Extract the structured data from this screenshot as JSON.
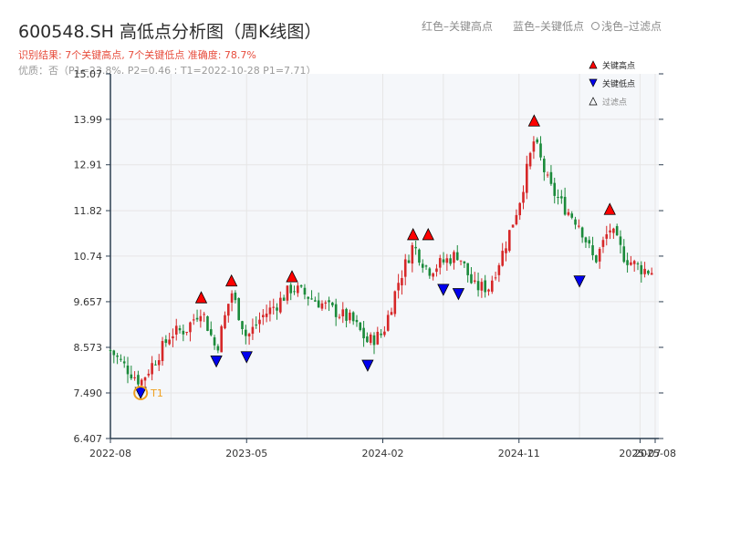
{
  "header": {
    "title": "600548.SH 高低点分析图（周K线图）",
    "hint_red": "红色–关键高点",
    "hint_blue": "蓝色–关键低点",
    "hint_light": "浅色–过滤点",
    "result_text": "识别结果: 7个关键高点, 7个关键低点   准确度: 78.7%",
    "quality_text": "优质：否（P1=23.8%, P2=0.46 ; T1=2022-10-28 P1=7.71）"
  },
  "colors": {
    "up": "#d62728",
    "down": "#1a8a3a",
    "high_marker": "#ff0000",
    "low_marker": "#0000ee",
    "t1_ring": "#f0a020",
    "axis": "#2c3e50",
    "grid": "#e6e6e6",
    "plot_bg": "#f5f7fa"
  },
  "chart_data": {
    "type": "candlestick",
    "title": "600548.SH 高低点分析图（周K线图）",
    "ylim": [
      6.407,
      15.07
    ],
    "y_ticks": [
      "6.407",
      "7.490",
      "8.573",
      "9.657",
      "10.74",
      "11.82",
      "12.91",
      "13.99",
      "15.07"
    ],
    "x_ticks": [
      "2022-08",
      "2023-05",
      "2024-02",
      "2024-11",
      "2025-07",
      "2025-08"
    ],
    "legend": {
      "placement": "top-right",
      "items": [
        {
          "label": "关键高点",
          "marker": "triangle-up",
          "color": "#ff0000"
        },
        {
          "label": "关键低点",
          "marker": "triangle-down",
          "color": "#0000ee"
        },
        {
          "label": "过滤点",
          "marker": "triangle-up-outline",
          "color": "#888888"
        }
      ]
    },
    "price_path": [
      {
        "t": "2022-08",
        "price": 8.5
      },
      {
        "t": "2022-09",
        "price": 8.1
      },
      {
        "t": "2022-10",
        "price": 7.75
      },
      {
        "t": "2022-11",
        "price": 8.3
      },
      {
        "t": "2022-12",
        "price": 8.9
      },
      {
        "t": "2023-01",
        "price": 9.0
      },
      {
        "t": "2023-02",
        "price": 9.5
      },
      {
        "t": "2023-03",
        "price": 8.5
      },
      {
        "t": "2023-04",
        "price": 9.9
      },
      {
        "t": "2023-05",
        "price": 8.8
      },
      {
        "t": "2023-06",
        "price": 9.3
      },
      {
        "t": "2023-07",
        "price": 9.6
      },
      {
        "t": "2023-08",
        "price": 10.0
      },
      {
        "t": "2023-09",
        "price": 9.8
      },
      {
        "t": "2023-10",
        "price": 9.6
      },
      {
        "t": "2023-11",
        "price": 9.4
      },
      {
        "t": "2023-12",
        "price": 9.2
      },
      {
        "t": "2024-01",
        "price": 8.7
      },
      {
        "t": "2024-02",
        "price": 8.9
      },
      {
        "t": "2024-03",
        "price": 10.1
      },
      {
        "t": "2024-04",
        "price": 11.0
      },
      {
        "t": "2024-05",
        "price": 10.4
      },
      {
        "t": "2024-06",
        "price": 10.6
      },
      {
        "t": "2024-07",
        "price": 10.8
      },
      {
        "t": "2024-08",
        "price": 10.0
      },
      {
        "t": "2024-09",
        "price": 10.0
      },
      {
        "t": "2024-10",
        "price": 10.9
      },
      {
        "t": "2024-11",
        "price": 12.0
      },
      {
        "t": "2024-12",
        "price": 13.5
      },
      {
        "t": "2025-01",
        "price": 12.4
      },
      {
        "t": "2025-02",
        "price": 11.9
      },
      {
        "t": "2025-03",
        "price": 11.5
      },
      {
        "t": "2025-04",
        "price": 10.6
      },
      {
        "t": "2025-05",
        "price": 11.4
      },
      {
        "t": "2025-06",
        "price": 10.7
      },
      {
        "t": "2025-07",
        "price": 10.45
      },
      {
        "t": "2025-08",
        "price": 10.35
      }
    ],
    "key_highs": [
      {
        "t": "2023-02",
        "price": 9.5
      },
      {
        "t": "2023-04",
        "price": 9.9
      },
      {
        "t": "2023-08",
        "price": 10.0
      },
      {
        "t": "2024-04",
        "price": 11.0
      },
      {
        "t": "2024-05",
        "price": 11.0
      },
      {
        "t": "2024-12",
        "price": 13.7
      },
      {
        "t": "2025-05",
        "price": 11.6
      }
    ],
    "key_lows": [
      {
        "t": "2022-10",
        "price": 7.75,
        "label": "T1"
      },
      {
        "t": "2023-03",
        "price": 8.5
      },
      {
        "t": "2023-05",
        "price": 8.6
      },
      {
        "t": "2024-01",
        "price": 8.4
      },
      {
        "t": "2024-06",
        "price": 10.2
      },
      {
        "t": "2024-07",
        "price": 10.1
      },
      {
        "t": "2025-03",
        "price": 10.4
      }
    ]
  }
}
